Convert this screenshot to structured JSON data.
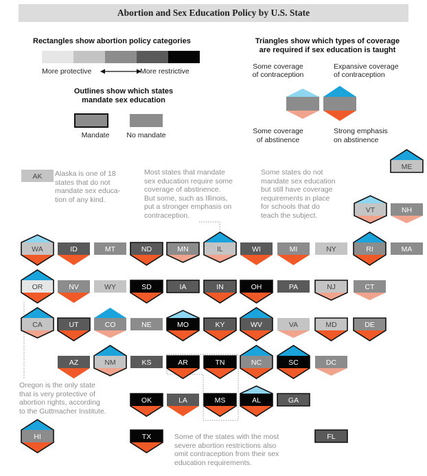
{
  "title": "Abortion and Sex Education Policy by U.S. State",
  "legend": {
    "rect_title": "Rectangles show abortion policy categories",
    "rect_low": "More protective",
    "rect_high": "More restrictive",
    "outline_title_1": "Outlines show which states",
    "outline_title_2": "mandate sex education",
    "mandate_label": "Mandate",
    "no_mandate_label": "No mandate",
    "tri_title_1": "Triangles show which types of coverage",
    "tri_title_2": "are required if sex education is taught",
    "tri_some_contra_1": "Some coverage",
    "tri_some_contra_2": "of contraception",
    "tri_exp_contra_1": "Expansive coverage",
    "tri_exp_contra_2": "of contraception",
    "tri_some_abst_1": "Some coverage",
    "tri_some_abst_2": "of abstinence",
    "tri_strong_abst_1": "Strong emphasis",
    "tri_strong_abst_2": "on abstinence"
  },
  "colors": {
    "cat1": "#e6e6e6",
    "cat2": "#c4c4c4",
    "cat3": "#8c8c8c",
    "cat4": "#5a5a5a",
    "cat5": "#050505",
    "contra_some": "#8ed6f0",
    "contra_expansive": "#1ba3dc",
    "abst_some": "#f0a48e",
    "abst_strong": "#f05a28"
  },
  "annotations": {
    "ak": [
      "Alaska is one of 18",
      "states that do not",
      "mandate sex educa-",
      "tion of any kind."
    ],
    "abstinence": [
      "Most states that mandate",
      "sex education require some",
      "coverage of abstinence.",
      "But some, such as Illinois,",
      "put a stronger emphasis on",
      "contraception."
    ],
    "coverage": [
      "Some states do not",
      "mandate sex education",
      "but still have coverage",
      "requirements in place",
      "for schools that do",
      "teach the subject."
    ],
    "oregon": [
      "Oregon is the only state",
      "that is very protective of",
      "abortion rights, according",
      "to the Guttmacher Institute."
    ],
    "restrict": [
      "Some of the states with the most",
      "severe abortion restrictions also",
      "omit contraception from their sex",
      "education requirements."
    ]
  },
  "states": [
    {
      "abbr": "AK",
      "cat": 2,
      "mandate": false,
      "top": "none",
      "bottom": "none"
    },
    {
      "abbr": "ME",
      "cat": 2,
      "mandate": true,
      "top": "expansive",
      "bottom": "none"
    },
    {
      "abbr": "VT",
      "cat": 2,
      "mandate": true,
      "top": "some",
      "bottom": "some"
    },
    {
      "abbr": "NH",
      "cat": 3,
      "mandate": false,
      "top": "none",
      "bottom": "some"
    },
    {
      "abbr": "WA",
      "cat": 2,
      "mandate": true,
      "top": "some",
      "bottom": "strong"
    },
    {
      "abbr": "ID",
      "cat": 4,
      "mandate": false,
      "top": "none",
      "bottom": "strong"
    },
    {
      "abbr": "MT",
      "cat": 3,
      "mandate": false,
      "top": "none",
      "bottom": "none"
    },
    {
      "abbr": "ND",
      "cat": 4,
      "mandate": true,
      "top": "none",
      "bottom": "strong"
    },
    {
      "abbr": "MN",
      "cat": 3,
      "mandate": true,
      "top": "none",
      "bottom": "some"
    },
    {
      "abbr": "IL",
      "cat": 2,
      "mandate": true,
      "top": "expansive",
      "bottom": "some"
    },
    {
      "abbr": "WI",
      "cat": 4,
      "mandate": false,
      "top": "none",
      "bottom": "strong"
    },
    {
      "abbr": "MI",
      "cat": 3,
      "mandate": false,
      "top": "none",
      "bottom": "strong"
    },
    {
      "abbr": "NY",
      "cat": 2,
      "mandate": false,
      "top": "none",
      "bottom": "none"
    },
    {
      "abbr": "RI",
      "cat": 3,
      "mandate": true,
      "top": "expansive",
      "bottom": "strong"
    },
    {
      "abbr": "MA",
      "cat": 3,
      "mandate": false,
      "top": "none",
      "bottom": "none"
    },
    {
      "abbr": "OR",
      "cat": 1,
      "mandate": true,
      "top": "expansive",
      "bottom": "strong"
    },
    {
      "abbr": "NV",
      "cat": 3,
      "mandate": false,
      "top": "none",
      "bottom": "strong"
    },
    {
      "abbr": "WY",
      "cat": 2,
      "mandate": false,
      "top": "none",
      "bottom": "none"
    },
    {
      "abbr": "SD",
      "cat": 5,
      "mandate": true,
      "top": "none",
      "bottom": "strong"
    },
    {
      "abbr": "IA",
      "cat": 4,
      "mandate": true,
      "top": "none",
      "bottom": "none"
    },
    {
      "abbr": "IN",
      "cat": 4,
      "mandate": true,
      "top": "none",
      "bottom": "strong"
    },
    {
      "abbr": "OH",
      "cat": 5,
      "mandate": true,
      "top": "none",
      "bottom": "strong"
    },
    {
      "abbr": "PA",
      "cat": 4,
      "mandate": false,
      "top": "none",
      "bottom": "none"
    },
    {
      "abbr": "NJ",
      "cat": 2,
      "mandate": true,
      "top": "none",
      "bottom": "some"
    },
    {
      "abbr": "CT",
      "cat": 3,
      "mandate": false,
      "top": "none",
      "bottom": "some"
    },
    {
      "abbr": "CA",
      "cat": 2,
      "mandate": true,
      "top": "expansive",
      "bottom": "some"
    },
    {
      "abbr": "UT",
      "cat": 4,
      "mandate": true,
      "top": "none",
      "bottom": "strong"
    },
    {
      "abbr": "CO",
      "cat": 3,
      "mandate": false,
      "top": "expansive",
      "bottom": "some"
    },
    {
      "abbr": "NE",
      "cat": 3,
      "mandate": false,
      "top": "none",
      "bottom": "none"
    },
    {
      "abbr": "MO",
      "cat": 5,
      "mandate": true,
      "top": "some",
      "bottom": "strong"
    },
    {
      "abbr": "KY",
      "cat": 4,
      "mandate": true,
      "top": "none",
      "bottom": "strong"
    },
    {
      "abbr": "WV",
      "cat": 4,
      "mandate": true,
      "top": "expansive",
      "bottom": "strong"
    },
    {
      "abbr": "VA",
      "cat": 2,
      "mandate": false,
      "top": "none",
      "bottom": "some"
    },
    {
      "abbr": "MD",
      "cat": 2,
      "mandate": true,
      "top": "none",
      "bottom": "strong"
    },
    {
      "abbr": "DE",
      "cat": 3,
      "mandate": true,
      "top": "none",
      "bottom": "strong"
    },
    {
      "abbr": "AZ",
      "cat": 4,
      "mandate": false,
      "top": "none",
      "bottom": "strong"
    },
    {
      "abbr": "NM",
      "cat": 2,
      "mandate": true,
      "top": "expansive",
      "bottom": "some"
    },
    {
      "abbr": "KS",
      "cat": 4,
      "mandate": false,
      "top": "none",
      "bottom": "none"
    },
    {
      "abbr": "AR",
      "cat": 5,
      "mandate": true,
      "top": "none",
      "bottom": "strong"
    },
    {
      "abbr": "TN",
      "cat": 5,
      "mandate": true,
      "top": "none",
      "bottom": "strong"
    },
    {
      "abbr": "NC",
      "cat": 3,
      "mandate": true,
      "top": "expansive",
      "bottom": "strong"
    },
    {
      "abbr": "SC",
      "cat": 5,
      "mandate": true,
      "top": "expansive",
      "bottom": "strong"
    },
    {
      "abbr": "DC",
      "cat": 3,
      "mandate": false,
      "top": "none",
      "bottom": "some"
    },
    {
      "abbr": "OK",
      "cat": 5,
      "mandate": true,
      "top": "none",
      "bottom": "strong"
    },
    {
      "abbr": "LA",
      "cat": 4,
      "mandate": false,
      "top": "none",
      "bottom": "strong"
    },
    {
      "abbr": "MS",
      "cat": 5,
      "mandate": true,
      "top": "none",
      "bottom": "strong"
    },
    {
      "abbr": "AL",
      "cat": 5,
      "mandate": true,
      "top": "some",
      "bottom": "strong"
    },
    {
      "abbr": "GA",
      "cat": 4,
      "mandate": true,
      "top": "none",
      "bottom": "none"
    },
    {
      "abbr": "HI",
      "cat": 3,
      "mandate": true,
      "top": "expansive",
      "bottom": "strong"
    },
    {
      "abbr": "TX",
      "cat": 5,
      "mandate": true,
      "top": "none",
      "bottom": "strong"
    },
    {
      "abbr": "FL",
      "cat": 4,
      "mandate": true,
      "top": "none",
      "bottom": "none"
    }
  ]
}
